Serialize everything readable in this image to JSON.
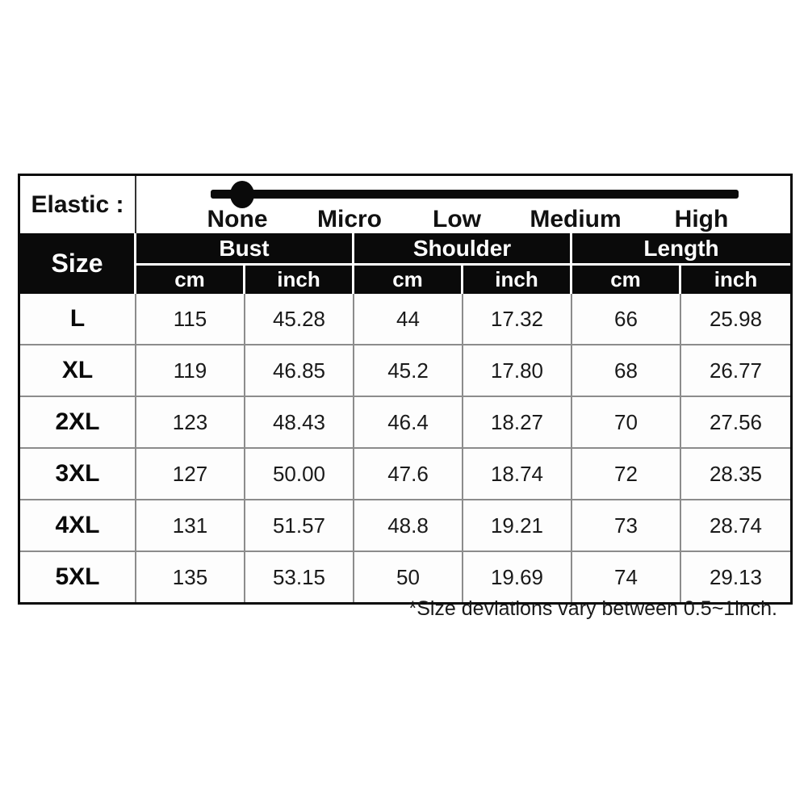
{
  "elastic": {
    "label": "Elastic :",
    "levels": [
      "None",
      "Micro",
      "Low",
      "Medium",
      "High"
    ],
    "selected_level": "None"
  },
  "table": {
    "size_header": "Size",
    "groups": [
      {
        "label": "Bust",
        "units": [
          "cm",
          "inch"
        ]
      },
      {
        "label": "Shoulder",
        "units": [
          "cm",
          "inch"
        ]
      },
      {
        "label": "Length",
        "units": [
          "cm",
          "inch"
        ]
      }
    ],
    "rows": [
      {
        "size": "L",
        "bust_cm": "115",
        "bust_inch": "45.28",
        "shoulder_cm": "44",
        "shoulder_inch": "17.32",
        "length_cm": "66",
        "length_inch": "25.98"
      },
      {
        "size": "XL",
        "bust_cm": "119",
        "bust_inch": "46.85",
        "shoulder_cm": "45.2",
        "shoulder_inch": "17.80",
        "length_cm": "68",
        "length_inch": "26.77"
      },
      {
        "size": "2XL",
        "bust_cm": "123",
        "bust_inch": "48.43",
        "shoulder_cm": "46.4",
        "shoulder_inch": "18.27",
        "length_cm": "70",
        "length_inch": "27.56"
      },
      {
        "size": "3XL",
        "bust_cm": "127",
        "bust_inch": "50.00",
        "shoulder_cm": "47.6",
        "shoulder_inch": "18.74",
        "length_cm": "72",
        "length_inch": "28.35"
      },
      {
        "size": "4XL",
        "bust_cm": "131",
        "bust_inch": "51.57",
        "shoulder_cm": "48.8",
        "shoulder_inch": "19.21",
        "length_cm": "73",
        "length_inch": "28.74"
      },
      {
        "size": "5XL",
        "bust_cm": "135",
        "bust_inch": "53.15",
        "shoulder_cm": "50",
        "shoulder_inch": "19.69",
        "length_cm": "74",
        "length_inch": "29.13"
      }
    ]
  },
  "footnote": "*Size deviations vary between 0.5~1inch.",
  "colors": {
    "header_bg": "#0a0a0a",
    "header_text": "#ffffff",
    "cell_text": "#1a1a1a",
    "grid_line": "#8c8c8c"
  }
}
